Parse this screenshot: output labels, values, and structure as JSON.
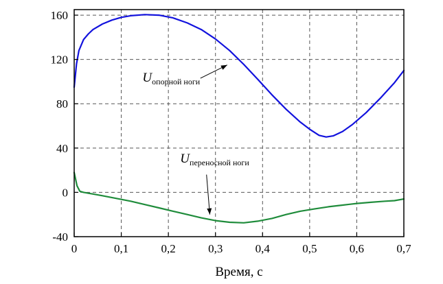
{
  "chart_data": {
    "type": "line",
    "title": "",
    "xlabel": "Время, с",
    "ylabel": "",
    "xlim": [
      0,
      0.7
    ],
    "ylim": [
      -40,
      165
    ],
    "grid": "dashed",
    "grid_color": "#555555",
    "x_ticks": [
      0,
      0.1,
      0.2,
      0.3,
      0.4,
      0.5,
      0.6,
      0.7
    ],
    "x_tick_labels": [
      "0",
      "0,1",
      "0,2",
      "0,3",
      "0,4",
      "0,5",
      "0,6",
      "0,7"
    ],
    "y_ticks": [
      -40,
      0,
      40,
      80,
      120,
      160
    ],
    "y_tick_labels": [
      "-40",
      "0",
      "40",
      "80",
      "120",
      "160"
    ],
    "series": [
      {
        "name": "U опорной ноги",
        "color": "#1212dd",
        "points": [
          [
            0,
            95
          ],
          [
            0.005,
            116
          ],
          [
            0.01,
            128
          ],
          [
            0.02,
            138
          ],
          [
            0.03,
            143
          ],
          [
            0.04,
            147
          ],
          [
            0.06,
            152
          ],
          [
            0.08,
            155.5
          ],
          [
            0.1,
            158
          ],
          [
            0.12,
            159.5
          ],
          [
            0.15,
            160.5
          ],
          [
            0.18,
            160
          ],
          [
            0.21,
            157.5
          ],
          [
            0.24,
            153
          ],
          [
            0.27,
            147
          ],
          [
            0.3,
            138.5
          ],
          [
            0.33,
            128
          ],
          [
            0.36,
            115.5
          ],
          [
            0.39,
            102
          ],
          [
            0.42,
            88
          ],
          [
            0.45,
            75
          ],
          [
            0.48,
            63.5
          ],
          [
            0.5,
            57
          ],
          [
            0.52,
            51.5
          ],
          [
            0.535,
            50
          ],
          [
            0.55,
            51
          ],
          [
            0.57,
            55
          ],
          [
            0.59,
            61
          ],
          [
            0.62,
            72
          ],
          [
            0.65,
            85
          ],
          [
            0.68,
            99
          ],
          [
            0.7,
            110
          ]
        ]
      },
      {
        "name": "U переносной ноги",
        "color": "#1f8c3b",
        "points": [
          [
            0,
            18
          ],
          [
            0.006,
            6
          ],
          [
            0.012,
            1
          ],
          [
            0.02,
            0
          ],
          [
            0.04,
            -1.5
          ],
          [
            0.06,
            -3
          ],
          [
            0.09,
            -5.5
          ],
          [
            0.12,
            -8
          ],
          [
            0.15,
            -11
          ],
          [
            0.18,
            -14
          ],
          [
            0.21,
            -17
          ],
          [
            0.24,
            -20
          ],
          [
            0.27,
            -23
          ],
          [
            0.3,
            -25.5
          ],
          [
            0.33,
            -27
          ],
          [
            0.36,
            -27.5
          ],
          [
            0.39,
            -26
          ],
          [
            0.42,
            -23.5
          ],
          [
            0.45,
            -20
          ],
          [
            0.48,
            -17
          ],
          [
            0.51,
            -15
          ],
          [
            0.54,
            -13
          ],
          [
            0.57,
            -11.5
          ],
          [
            0.6,
            -10
          ],
          [
            0.63,
            -9
          ],
          [
            0.66,
            -8
          ],
          [
            0.68,
            -7.5
          ],
          [
            0.7,
            -6
          ]
        ]
      }
    ],
    "annotations": [
      {
        "text_main": "U",
        "text_sub": "опорной ноги",
        "x": 0.145,
        "y": 100,
        "arrow": {
          "x1": 0.268,
          "y1": 103,
          "x2": 0.325,
          "y2": 115
        }
      },
      {
        "text_main": "U",
        "text_sub": "переносной ноги",
        "x": 0.225,
        "y": 27,
        "arrow": {
          "x1": 0.281,
          "y1": 16,
          "x2": 0.288,
          "y2": -20
        }
      }
    ]
  }
}
